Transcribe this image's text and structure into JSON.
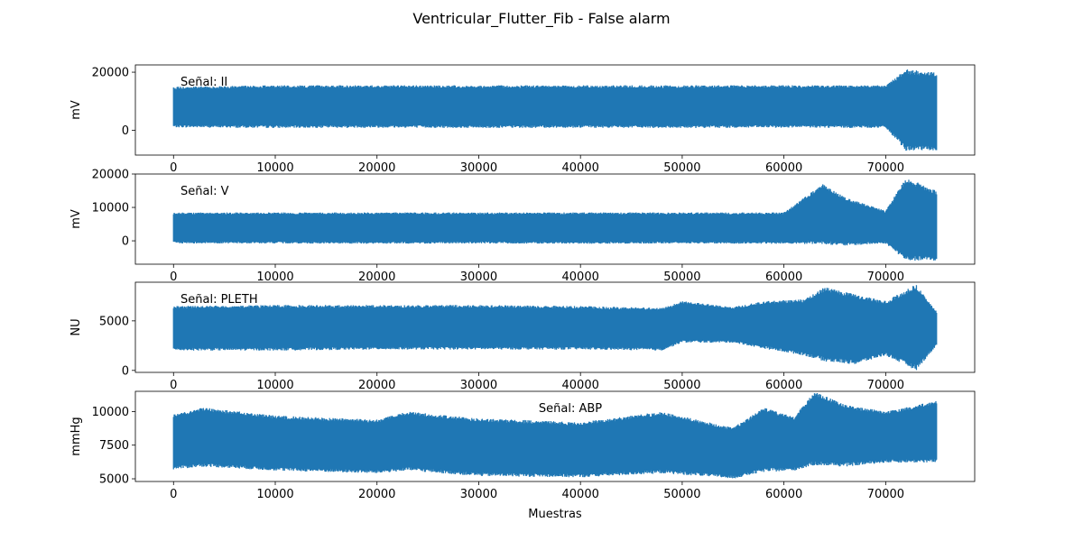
{
  "chart_data": {
    "type": "line",
    "title": "Ventricular_Flutter_Fib - False alarm",
    "xlabel": "Muestras",
    "xlim": [
      -3750,
      78750
    ],
    "x_ticks": [
      0,
      10000,
      20000,
      30000,
      40000,
      50000,
      60000,
      70000
    ],
    "n_samples": 75000,
    "color": "#1f77b4",
    "grid": false,
    "panels": [
      {
        "series_name": "Señal: II",
        "legend_label": "Señal: II",
        "ylabel": "mV",
        "legend_position": "upper-left",
        "ylim": [
          -8500,
          22500
        ],
        "y_ticks": [
          0,
          20000
        ],
        "envelope": [
          {
            "x": 0,
            "min": 1000,
            "max": 15000
          },
          {
            "x": 10000,
            "min": 800,
            "max": 15500
          },
          {
            "x": 20000,
            "min": 900,
            "max": 15500
          },
          {
            "x": 30000,
            "min": 800,
            "max": 15500
          },
          {
            "x": 40000,
            "min": 900,
            "max": 15500
          },
          {
            "x": 50000,
            "min": 800,
            "max": 15500
          },
          {
            "x": 60000,
            "min": 900,
            "max": 15500
          },
          {
            "x": 70000,
            "min": 800,
            "max": 15500
          },
          {
            "x": 72000,
            "min": -7000,
            "max": 21000
          },
          {
            "x": 75000,
            "min": -7000,
            "max": 20000
          }
        ]
      },
      {
        "series_name": "Señal: V",
        "legend_label": "Señal: V",
        "ylabel": "mV",
        "legend_position": "upper-left",
        "ylim": [
          -7000,
          20000
        ],
        "y_ticks": [
          0,
          10000,
          20000
        ],
        "envelope": [
          {
            "x": 0,
            "min": -800,
            "max": 8500
          },
          {
            "x": 10000,
            "min": -800,
            "max": 8500
          },
          {
            "x": 20000,
            "min": -900,
            "max": 8500
          },
          {
            "x": 30000,
            "min": -800,
            "max": 8500
          },
          {
            "x": 40000,
            "min": -900,
            "max": 8500
          },
          {
            "x": 50000,
            "min": -800,
            "max": 8500
          },
          {
            "x": 60000,
            "min": -900,
            "max": 8500
          },
          {
            "x": 63800,
            "min": -1000,
            "max": 17000
          },
          {
            "x": 66000,
            "min": -1500,
            "max": 13000
          },
          {
            "x": 70000,
            "min": -800,
            "max": 9000
          },
          {
            "x": 72000,
            "min": -6000,
            "max": 19000
          },
          {
            "x": 75000,
            "min": -6000,
            "max": 15000
          }
        ]
      },
      {
        "series_name": "Señal: PLETH",
        "legend_label": "Señal: PLETH",
        "ylabel": "NU",
        "legend_position": "upper-left",
        "ylim": [
          -200,
          8900
        ],
        "y_ticks": [
          0,
          5000
        ],
        "envelope": [
          {
            "x": 0,
            "min": 2000,
            "max": 6500
          },
          {
            "x": 10000,
            "min": 2000,
            "max": 6600
          },
          {
            "x": 20000,
            "min": 2100,
            "max": 6600
          },
          {
            "x": 30000,
            "min": 2100,
            "max": 6600
          },
          {
            "x": 40000,
            "min": 2100,
            "max": 6500
          },
          {
            "x": 48000,
            "min": 2000,
            "max": 6300
          },
          {
            "x": 50000,
            "min": 2800,
            "max": 7000
          },
          {
            "x": 55000,
            "min": 2800,
            "max": 6400
          },
          {
            "x": 58000,
            "min": 2200,
            "max": 7000
          },
          {
            "x": 62000,
            "min": 1500,
            "max": 7200
          },
          {
            "x": 64000,
            "min": 900,
            "max": 8400
          },
          {
            "x": 67000,
            "min": 600,
            "max": 7700
          },
          {
            "x": 70000,
            "min": 1500,
            "max": 7000
          },
          {
            "x": 73000,
            "min": 0,
            "max": 8700
          },
          {
            "x": 75000,
            "min": 2500,
            "max": 6000
          }
        ]
      },
      {
        "series_name": "Señal: ABP",
        "legend_label": "Señal: ABP",
        "ylabel": "mmHg",
        "legend_position": "upper-center",
        "ylim": [
          4800,
          11500
        ],
        "y_ticks": [
          5000,
          7500,
          10000
        ],
        "envelope": [
          {
            "x": 0,
            "min": 5700,
            "max": 9800
          },
          {
            "x": 3000,
            "min": 5900,
            "max": 10300
          },
          {
            "x": 10000,
            "min": 5600,
            "max": 9700
          },
          {
            "x": 20000,
            "min": 5400,
            "max": 9400
          },
          {
            "x": 23000,
            "min": 5600,
            "max": 10000
          },
          {
            "x": 30000,
            "min": 5200,
            "max": 9500
          },
          {
            "x": 40000,
            "min": 5100,
            "max": 9200
          },
          {
            "x": 48000,
            "min": 5400,
            "max": 10000
          },
          {
            "x": 52000,
            "min": 5200,
            "max": 9300
          },
          {
            "x": 55000,
            "min": 5000,
            "max": 8800
          },
          {
            "x": 58000,
            "min": 5500,
            "max": 10300
          },
          {
            "x": 61000,
            "min": 5600,
            "max": 9600
          },
          {
            "x": 63000,
            "min": 6000,
            "max": 11500
          },
          {
            "x": 66000,
            "min": 5900,
            "max": 10500
          },
          {
            "x": 70000,
            "min": 6200,
            "max": 10000
          },
          {
            "x": 75000,
            "min": 6200,
            "max": 10800
          }
        ]
      }
    ]
  }
}
